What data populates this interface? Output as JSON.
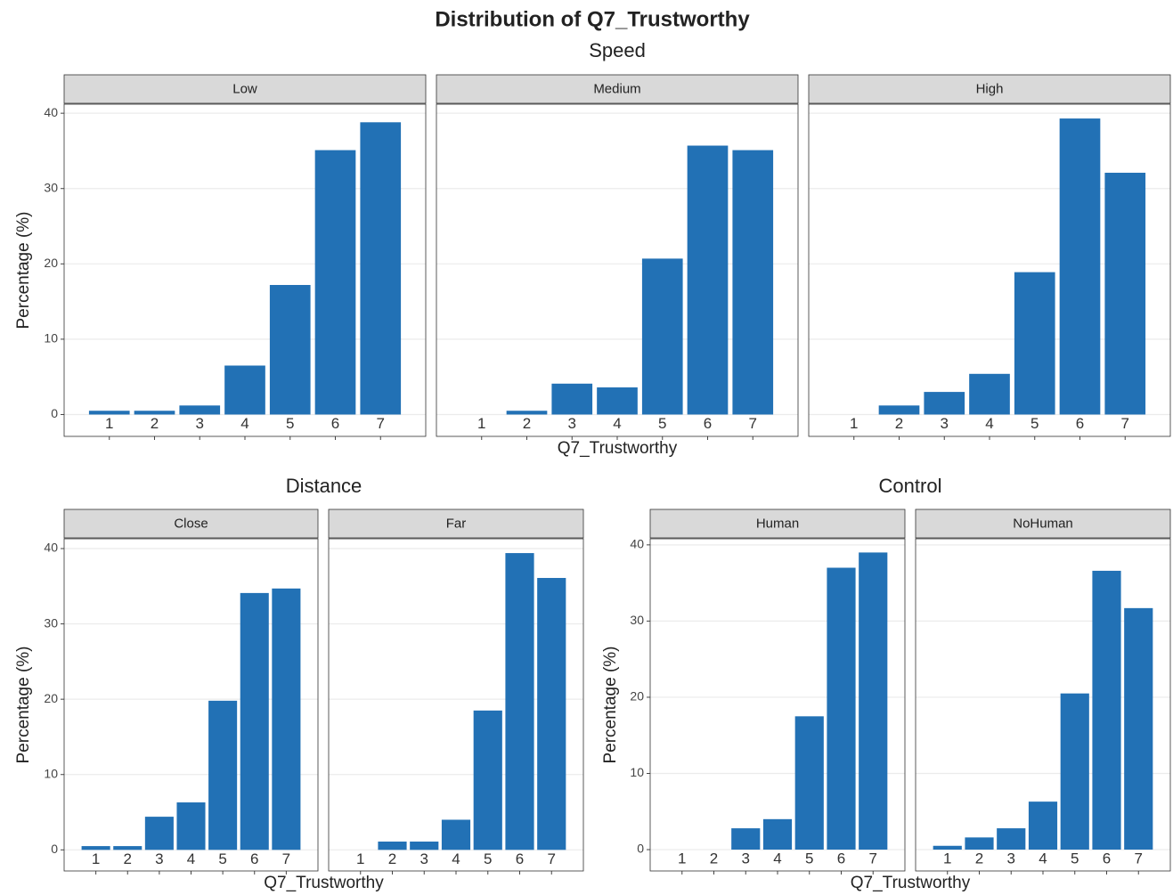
{
  "title": "Distribution of Q7_Trustworthy",
  "chart_data": [
    {
      "type": "bar",
      "title": "Speed",
      "xlabel": "Q7_Trustworthy",
      "ylabel": "Percentage (%)",
      "categories": [
        1,
        2,
        3,
        4,
        5,
        6,
        7
      ],
      "ylim": [
        -2.9,
        41.2
      ],
      "yticks": [
        0,
        10,
        20,
        30,
        40
      ],
      "grid": true,
      "series": [
        {
          "name": "Low",
          "color": "#2271b5",
          "values": [
            0.5,
            0.5,
            1.2,
            6.5,
            17.2,
            35.1,
            38.8
          ]
        },
        {
          "name": "Medium",
          "color": "#2271b5",
          "values": [
            0,
            0.5,
            4.1,
            3.6,
            20.7,
            35.7,
            35.1
          ]
        },
        {
          "name": "High",
          "color": "#2271b5",
          "values": [
            0,
            1.2,
            3.0,
            5.4,
            18.9,
            39.3,
            32.1
          ]
        }
      ]
    },
    {
      "type": "bar",
      "title": "Distance",
      "xlabel": "Q7_Trustworthy",
      "ylabel": "Percentage (%)",
      "categories": [
        1,
        2,
        3,
        4,
        5,
        6,
        7
      ],
      "ylim": [
        -2.8,
        41.3
      ],
      "yticks": [
        0,
        10,
        20,
        30,
        40
      ],
      "grid": true,
      "series": [
        {
          "name": "Close",
          "color": "#2271b5",
          "values": [
            0.5,
            0.5,
            4.4,
            6.3,
            19.8,
            34.1,
            34.7
          ]
        },
        {
          "name": "Far",
          "color": "#2271b5",
          "values": [
            0,
            1.1,
            1.1,
            4.0,
            18.5,
            39.4,
            36.1
          ]
        }
      ]
    },
    {
      "type": "bar",
      "title": "Control",
      "xlabel": "Q7_Trustworthy",
      "ylabel": "Percentage (%)",
      "categories": [
        1,
        2,
        3,
        4,
        5,
        6,
        7
      ],
      "ylim": [
        -2.8,
        40.8
      ],
      "yticks": [
        0,
        10,
        20,
        30,
        40
      ],
      "grid": true,
      "series": [
        {
          "name": "Human",
          "color": "#2271b5",
          "values": [
            0,
            0,
            2.8,
            4.0,
            17.5,
            37.0,
            39.0
          ]
        },
        {
          "name": "NoHuman",
          "color": "#2271b5",
          "values": [
            0.5,
            1.6,
            2.8,
            6.3,
            20.5,
            36.6,
            31.7
          ]
        }
      ]
    }
  ]
}
